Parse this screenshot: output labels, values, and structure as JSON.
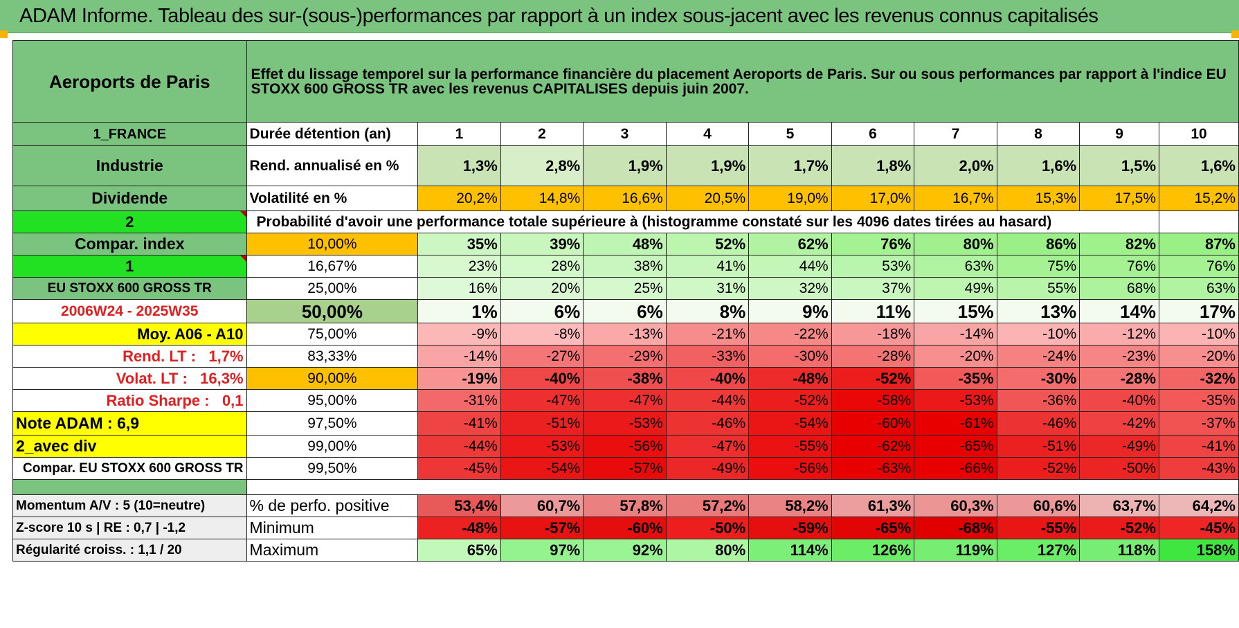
{
  "banner": "ADAM Informe. Tableau des sur-(sous-)performances par rapport à un index sous-jacent avec les revenus connus capitalisés",
  "colors": {
    "header_green": "#7ac47f",
    "bright_green": "#22e022",
    "yellow": "#ffff00",
    "orange": "#ffc000",
    "red_text": "#e02020"
  },
  "sidebar": {
    "company": "Aeroports de Paris",
    "country": "1_FRANCE",
    "sector": "Industrie",
    "dividend": "Dividende",
    "two": "2",
    "compar_index": "Compar. index",
    "one": "1",
    "index_name": "EU STOXX 600 GROSS TR",
    "period": "2006W24 - 2025W35",
    "moy": "Moy. A06 - A10",
    "rend_lt": "Rend. LT :   1,7%",
    "volat_lt": "Volat. LT :   16,3%",
    "sharpe": "Ratio Sharpe :   0,1",
    "note": "Note ADAM : 6,9",
    "avec_div": "2_avec div",
    "compar_label": "Compar. EU STOXX 600 GROSS TR",
    "momentum": "Momentum A/V : 5 (10=neutre)",
    "zscore": "Z-score 10 s | RE : 0,7 | -1,2",
    "regularite": "Régularité croiss. : 1,1 / 20"
  },
  "title": "Effet du lissage temporel sur la performance financière du placement Aeroports de Paris. Sur ou sous performances par rapport à l'indice EU STOXX 600 GROSS TR avec les revenus CAPITALISES depuis juin 2007.",
  "row_labels": {
    "duree": "Durée détention (an)",
    "rend": "Rend. annualisé en %",
    "vol": "Volatilité en %",
    "prob": "Probabilité d'avoir une performance totale supérieure à (histogramme constaté sur les 4096 dates tirées au hasard)",
    "pos": "% de perfo. positive",
    "min": "Minimum",
    "max": "Maximum"
  },
  "years": [
    "1",
    "2",
    "3",
    "4",
    "5",
    "6",
    "7",
    "8",
    "9",
    "10"
  ],
  "rend": [
    "1,3%",
    "2,8%",
    "1,9%",
    "1,9%",
    "1,7%",
    "1,8%",
    "2,0%",
    "1,6%",
    "1,5%",
    "1,6%"
  ],
  "vol": [
    "20,2%",
    "14,8%",
    "16,6%",
    "20,5%",
    "19,0%",
    "17,0%",
    "16,7%",
    "15,3%",
    "17,5%",
    "15,2%"
  ],
  "levels": [
    {
      "level": "10,00%",
      "values": [
        "35%",
        "39%",
        "48%",
        "52%",
        "62%",
        "76%",
        "80%",
        "86%",
        "82%",
        "87%"
      ]
    },
    {
      "level": "16,67%",
      "values": [
        "23%",
        "28%",
        "38%",
        "41%",
        "44%",
        "53%",
        "63%",
        "75%",
        "76%",
        "76%"
      ]
    },
    {
      "level": "25,00%",
      "values": [
        "16%",
        "20%",
        "25%",
        "31%",
        "32%",
        "37%",
        "49%",
        "55%",
        "68%",
        "63%"
      ]
    },
    {
      "level": "50,00%",
      "values": [
        "1%",
        "6%",
        "6%",
        "8%",
        "9%",
        "11%",
        "15%",
        "13%",
        "14%",
        "17%"
      ]
    },
    {
      "level": "75,00%",
      "values": [
        "-9%",
        "-8%",
        "-13%",
        "-21%",
        "-22%",
        "-18%",
        "-14%",
        "-10%",
        "-12%",
        "-10%"
      ]
    },
    {
      "level": "83,33%",
      "values": [
        "-14%",
        "-27%",
        "-29%",
        "-33%",
        "-30%",
        "-28%",
        "-20%",
        "-24%",
        "-23%",
        "-20%"
      ]
    },
    {
      "level": "90,00%",
      "values": [
        "-19%",
        "-40%",
        "-38%",
        "-40%",
        "-48%",
        "-52%",
        "-35%",
        "-30%",
        "-28%",
        "-32%"
      ]
    },
    {
      "level": "95,00%",
      "values": [
        "-31%",
        "-47%",
        "-47%",
        "-44%",
        "-52%",
        "-58%",
        "-53%",
        "-36%",
        "-40%",
        "-35%"
      ]
    },
    {
      "level": "97,50%",
      "values": [
        "-41%",
        "-51%",
        "-53%",
        "-46%",
        "-54%",
        "-60%",
        "-61%",
        "-46%",
        "-42%",
        "-37%"
      ]
    },
    {
      "level": "99,00%",
      "values": [
        "-44%",
        "-53%",
        "-56%",
        "-47%",
        "-55%",
        "-62%",
        "-65%",
        "-51%",
        "-49%",
        "-41%"
      ]
    },
    {
      "level": "99,50%",
      "values": [
        "-45%",
        "-54%",
        "-57%",
        "-49%",
        "-56%",
        "-63%",
        "-66%",
        "-52%",
        "-50%",
        "-43%"
      ]
    }
  ],
  "pos": [
    "53,4%",
    "60,7%",
    "57,8%",
    "57,2%",
    "58,2%",
    "61,3%",
    "60,3%",
    "60,6%",
    "63,7%",
    "64,2%"
  ],
  "min": [
    "-48%",
    "-57%",
    "-60%",
    "-50%",
    "-59%",
    "-65%",
    "-68%",
    "-55%",
    "-52%",
    "-45%"
  ],
  "max": [
    "65%",
    "97%",
    "92%",
    "80%",
    "114%",
    "126%",
    "119%",
    "127%",
    "118%",
    "158%"
  ]
}
